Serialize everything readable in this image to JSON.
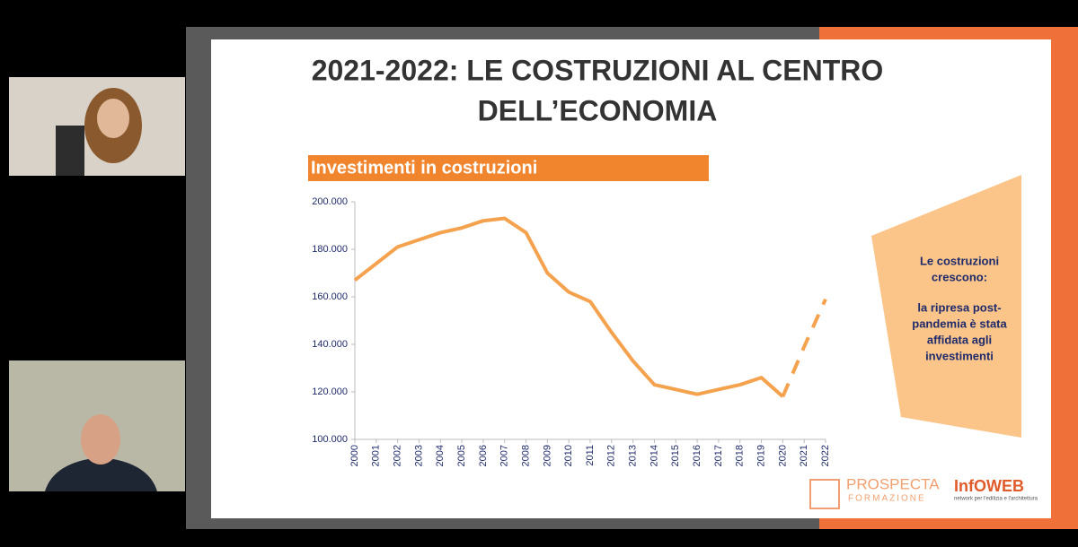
{
  "slide": {
    "title_lines": [
      "2021-2022: LE COSTRUZIONI AL CENTRO",
      "DELL’ECONOMIA"
    ],
    "banner": "Investimenti in costruzioni",
    "callout_lines": [
      "Le costruzioni",
      "crescono:",
      "la ripresa post-",
      "pandemia è stata",
      "affidata agli",
      "investimenti"
    ],
    "logo_left": [
      "PROSPECTA",
      "FORMAZIONE"
    ],
    "logo_right": [
      "InfOWEB",
      "network per l'edilizia e l'architettura"
    ]
  },
  "chart_data": {
    "type": "line",
    "categories": [
      "2000",
      "2001",
      "2002",
      "2003",
      "2004",
      "2005",
      "2006",
      "2007",
      "2008",
      "2009",
      "2010",
      "2011",
      "2012",
      "2013",
      "2014",
      "2015",
      "2016",
      "2017",
      "2018",
      "2019",
      "2020",
      "2021",
      "2022"
    ],
    "series": [
      {
        "color": "#f5a24f",
        "dashed": false,
        "values": [
          167000,
          174000,
          181000,
          184000,
          187000,
          189000,
          192000,
          193000,
          187000,
          170000,
          162000,
          158000,
          145000,
          133000,
          123000,
          121000,
          119000,
          121000,
          123000,
          126000,
          118000,
          null,
          null
        ]
      },
      {
        "color": "#f5a24f",
        "dashed": true,
        "values": [
          null,
          null,
          null,
          null,
          null,
          null,
          null,
          null,
          null,
          null,
          null,
          null,
          null,
          null,
          null,
          null,
          null,
          null,
          null,
          null,
          118000,
          139000,
          159000
        ]
      }
    ],
    "ylim": [
      100000,
      200000
    ],
    "yticks": [
      {
        "value": 100000,
        "label": "100.000"
      },
      {
        "value": 120000,
        "label": "120.000"
      },
      {
        "value": 140000,
        "label": "140.000"
      },
      {
        "value": 160000,
        "label": "160.000"
      },
      {
        "value": 180000,
        "label": "180.000"
      },
      {
        "value": 200000,
        "label": "200.000"
      }
    ],
    "grid": false
  }
}
